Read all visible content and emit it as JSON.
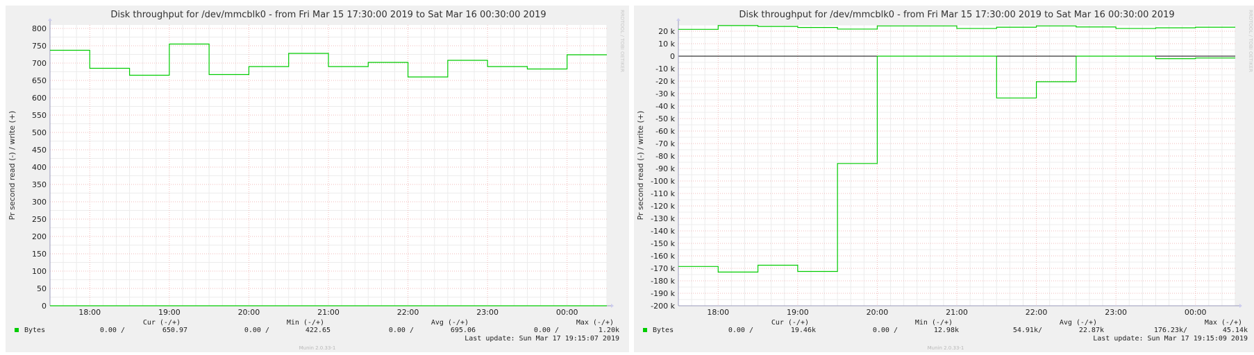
{
  "chart_data": [
    {
      "type": "line",
      "title": "Disk throughput for /dev/mmcblk0 - from Fri Mar 15 17:30:00 2019 to Sat Mar 16 00:30:00 2019",
      "ylabel": "Pr second read (-) / write (+)",
      "watermark": "RRDTOOL / TOBI OETIKER",
      "footer": "Munin 2.0.33-1",
      "x_ticks": [
        "18:00",
        "19:00",
        "20:00",
        "21:00",
        "22:00",
        "23:00",
        "00:00"
      ],
      "xlim": [
        "17:30",
        "00:30"
      ],
      "ylim": [
        0,
        810
      ],
      "y_ticks": [
        0,
        50,
        100,
        150,
        200,
        250,
        300,
        350,
        400,
        450,
        500,
        550,
        600,
        650,
        700,
        750,
        800
      ],
      "y_tick_labels": [
        "0",
        "50",
        "100",
        "150",
        "200",
        "250",
        "300",
        "350",
        "400",
        "450",
        "500",
        "550",
        "600",
        "650",
        "700",
        "750",
        "800"
      ],
      "grid": true,
      "series": [
        {
          "name": "Bytes",
          "color": "#00cc00",
          "x": [
            "17:30",
            "18:00",
            "18:30",
            "19:00",
            "19:30",
            "20:00",
            "20:30",
            "21:00",
            "21:30",
            "22:00",
            "22:30",
            "23:00",
            "23:30",
            "00:00"
          ],
          "write": [
            737,
            685,
            665,
            755,
            667,
            690,
            728,
            690,
            702,
            660,
            708,
            690,
            683,
            724
          ],
          "read": [
            0,
            0,
            0,
            0,
            0,
            0,
            0,
            0,
            0,
            0,
            0,
            0,
            0,
            0
          ]
        }
      ],
      "legend": {
        "headers": [
          "Cur (-/+)",
          "Min (-/+)",
          "Avg (-/+)",
          "Max (-/+)"
        ],
        "values": [
          "0.00 /",
          "650.97",
          "0.00 /",
          "422.65",
          "0.00 /",
          "695.06",
          "0.00 /",
          "1.20k"
        ]
      },
      "last_update": "Last update:  Sun Mar 17 19:15:07 2019"
    },
    {
      "type": "line",
      "title": "Disk throughput for /dev/mmcblk0 - from Fri Mar 15 17:30:00 2019 to Sat Mar 16 00:30:00 2019",
      "ylabel": "Pr second read (-) / write (+)",
      "watermark": "RRDTOOL / TOBI OETIKER",
      "footer": "Munin 2.0.33-1",
      "x_ticks": [
        "18:00",
        "19:00",
        "20:00",
        "21:00",
        "22:00",
        "23:00",
        "00:00"
      ],
      "xlim": [
        "17:30",
        "00:30"
      ],
      "ylim": [
        -200000,
        25000
      ],
      "y_ticks": [
        20000,
        10000,
        0,
        -10000,
        -20000,
        -30000,
        -40000,
        -50000,
        -60000,
        -70000,
        -80000,
        -90000,
        -100000,
        -110000,
        -120000,
        -130000,
        -140000,
        -150000,
        -160000,
        -170000,
        -180000,
        -190000,
        -200000
      ],
      "y_tick_labels": [
        "20 k",
        "10 k",
        "0",
        "-10 k",
        "-20 k",
        "-30 k",
        "-40 k",
        "-50 k",
        "-60 k",
        "-70 k",
        "-80 k",
        "-90 k",
        "-100 k",
        "-110 k",
        "-120 k",
        "-130 k",
        "-140 k",
        "-150 k",
        "-160 k",
        "-170 k",
        "-180 k",
        "-190 k",
        "-200 k"
      ],
      "grid": true,
      "series": [
        {
          "name": "Bytes",
          "color": "#00cc00",
          "x": [
            "17:30",
            "18:00",
            "18:30",
            "19:00",
            "19:30",
            "20:00",
            "20:30",
            "21:00",
            "21:30",
            "22:00",
            "22:30",
            "23:00",
            "23:30",
            "00:00"
          ],
          "write": [
            21500,
            24500,
            23800,
            23000,
            21700,
            24200,
            24200,
            22200,
            23200,
            24200,
            23400,
            22200,
            22700,
            23200
          ],
          "read": [
            -168500,
            -173000,
            -167500,
            -172500,
            -86000,
            0,
            0,
            0,
            -33500,
            -20500,
            0,
            0,
            -2000,
            -1500
          ]
        }
      ],
      "legend": {
        "headers": [
          "Cur (-/+)",
          "Min (-/+)",
          "Avg (-/+)",
          "Max (-/+)"
        ],
        "values": [
          "0.00 /",
          "19.46k",
          "0.00 /",
          "12.98k",
          "54.91k/",
          "22.87k",
          "176.23k/",
          "45.14k"
        ]
      },
      "last_update": "Last update:  Sun Mar 17 19:15:09 2019"
    }
  ]
}
